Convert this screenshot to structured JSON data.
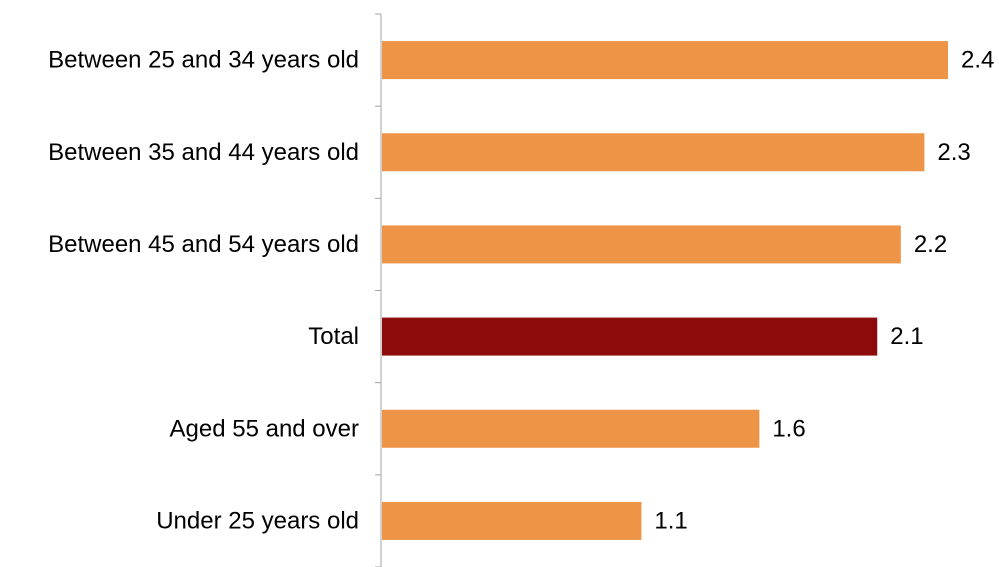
{
  "chart_data": {
    "type": "bar",
    "orientation": "horizontal",
    "title": "",
    "xlabel": "",
    "ylabel": "",
    "categories": [
      "Between 25 and 34 years old",
      "Between 35 and 44 years old",
      "Between 45 and 54 years old",
      "Total",
      "Aged 55 and over",
      "Under 25 years old"
    ],
    "values": [
      2.4,
      2.3,
      2.2,
      2.1,
      1.6,
      1.1
    ],
    "value_labels": [
      "2.4",
      "2.3",
      "2.2",
      "2.1",
      "1.6",
      "1.1"
    ],
    "bar_colors": [
      "#ED9447",
      "#ED9447",
      "#ED9447",
      "#8B0C0B",
      "#ED9447",
      "#ED9447"
    ],
    "xlim": [
      0,
      2.5
    ],
    "grid": false,
    "legend": "none",
    "show_data_labels": true
  }
}
